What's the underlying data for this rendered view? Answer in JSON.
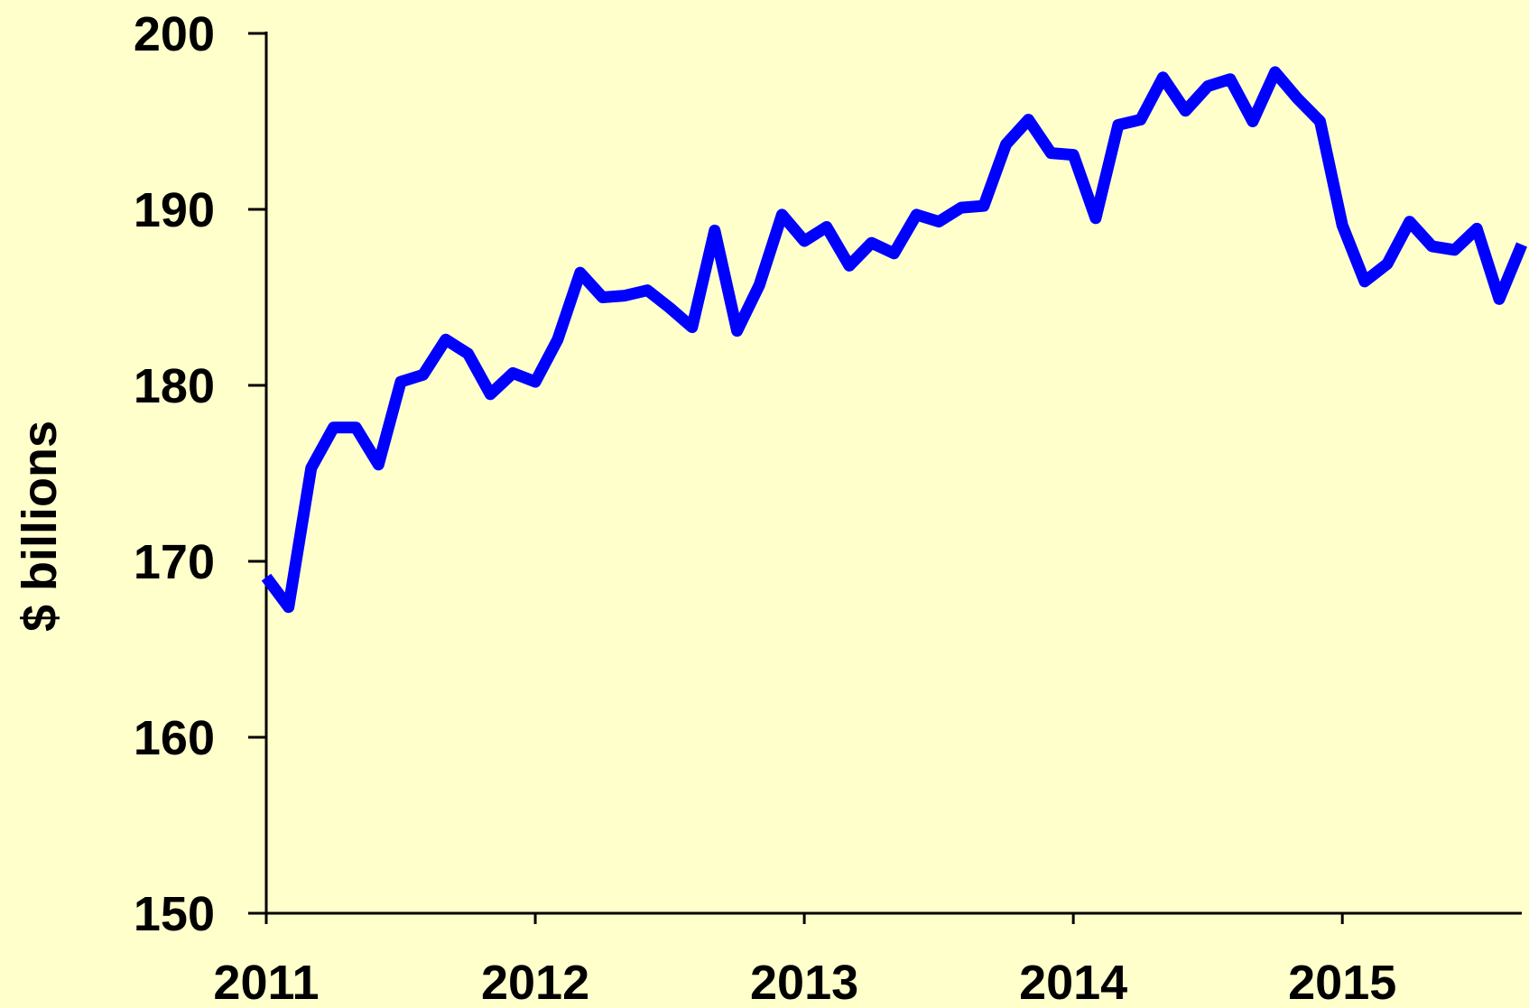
{
  "chart_data": {
    "type": "line",
    "y_label": "$ billions",
    "x": [
      2011,
      2011.083,
      2011.167,
      2011.25,
      2011.333,
      2011.417,
      2011.5,
      2011.583,
      2011.667,
      2011.75,
      2011.833,
      2011.917,
      2012,
      2012.083,
      2012.167,
      2012.25,
      2012.333,
      2012.417,
      2012.5,
      2012.583,
      2012.667,
      2012.75,
      2012.833,
      2012.917,
      2013,
      2013.083,
      2013.167,
      2013.25,
      2013.333,
      2013.417,
      2013.5,
      2013.583,
      2013.667,
      2013.75,
      2013.833,
      2013.917,
      2014,
      2014.083,
      2014.167,
      2014.25,
      2014.333,
      2014.417,
      2014.5,
      2014.583,
      2014.667,
      2014.75,
      2014.833,
      2014.917,
      2015,
      2015.083,
      2015.167,
      2015.25,
      2015.333,
      2015.417,
      2015.5,
      2015.583,
      2015.667
    ],
    "series": [
      {
        "color": "#0000ff",
        "values": [
          169.1,
          167.4,
          175.3,
          177.6,
          177.6,
          175.5,
          180.2,
          180.6,
          182.6,
          181.8,
          179.5,
          180.7,
          180.2,
          182.6,
          186.4,
          185.0,
          185.1,
          185.4,
          184.4,
          183.3,
          188.8,
          183.1,
          185.7,
          189.7,
          188.2,
          189.0,
          186.8,
          188.1,
          187.5,
          189.7,
          189.3,
          190.1,
          190.2,
          193.7,
          195.1,
          193.2,
          193.1,
          189.5,
          194.8,
          195.1,
          197.5,
          195.6,
          197.0,
          197.4,
          195.0,
          197.8,
          196.3,
          195.0,
          189.1,
          185.9,
          186.9,
          189.3,
          187.9,
          187.7,
          188.9,
          184.9,
          188.0
        ]
      }
    ],
    "xlim": [
      2011,
      2015.667
    ],
    "xticks": [
      2011,
      2012,
      2013,
      2014,
      2015
    ],
    "ylim": [
      150,
      200
    ],
    "yticks": [
      150,
      160,
      170,
      180,
      190,
      200
    ],
    "grid": false
  }
}
